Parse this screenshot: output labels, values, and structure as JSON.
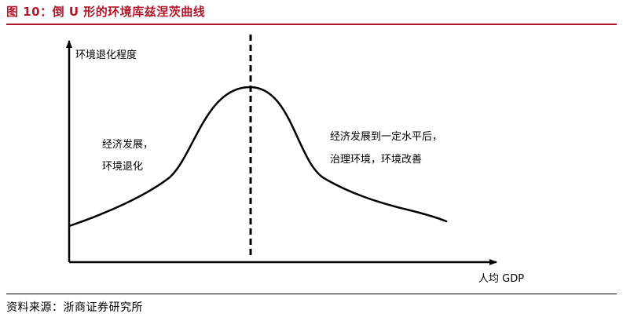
{
  "figure": {
    "title": "图 10：倒 U 形的环境库兹涅茨曲线",
    "source": "资料来源：浙商证券研究所"
  },
  "axes": {
    "y_label": "环境退化程度",
    "x_label": "人均 GDP"
  },
  "annotations": {
    "left_line1": "经济发展，",
    "left_line2": "环境退化",
    "right_line1": "经济发展到一定水平后，",
    "right_line2": "治理环境，环境改善"
  },
  "colors": {
    "title": "#b0172a",
    "curve": "#000000"
  }
}
